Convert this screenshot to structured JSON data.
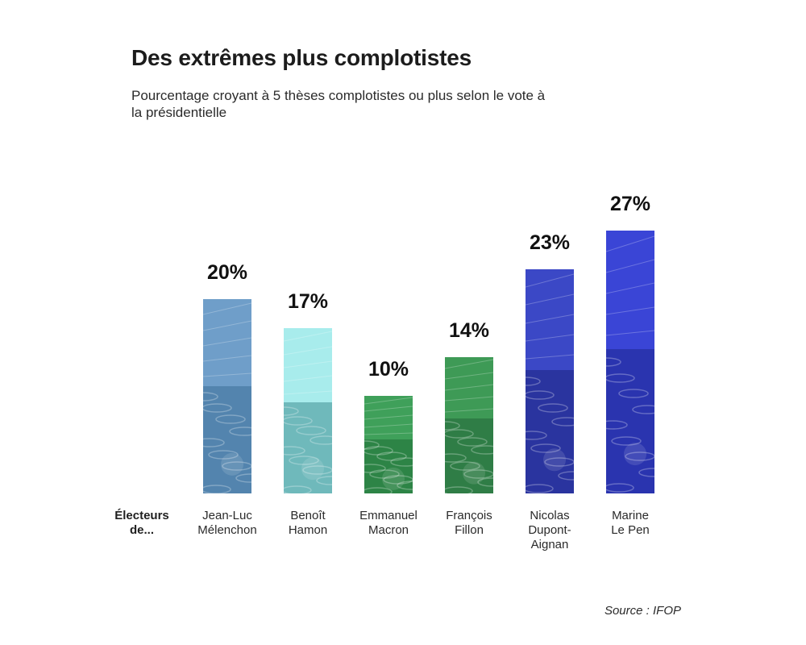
{
  "title": "Des extrêmes plus complotistes",
  "subtitle": "Pourcentage croyant à 5 thèses complotistes ou plus selon le vote à la présidentielle",
  "row_label": "Électeurs\nde...",
  "source": "Source : IFOP",
  "chart_data": {
    "type": "bar",
    "title": "Des extrêmes plus complotistes",
    "subtitle": "Pourcentage croyant à 5 thèses complotistes ou plus selon le vote à la présidentielle",
    "categories": [
      "Jean-Luc\nMélenchon",
      "Benoît\nHamon",
      "Emmanuel\nMacron",
      "François\nFillon",
      "Nicolas\nDupont-\nAignan",
      "Marine\nLe Pen"
    ],
    "values": [
      20,
      17,
      10,
      14,
      23,
      27
    ],
    "value_labels": [
      "20%",
      "17%",
      "10%",
      "14%",
      "23%",
      "27%"
    ],
    "unit": "%",
    "ylim": [
      0,
      27
    ],
    "grid": false,
    "legend": "none",
    "bar_colors": [
      "#6f9ec9",
      "#a8ecec",
      "#3fa05a",
      "#3e9a56",
      "#3b48c6",
      "#3a45d6"
    ],
    "bar_shade_colors": [
      "#3d6f97",
      "#3f8f93",
      "#1f6e36",
      "#22663a",
      "#1d2580",
      "#1e268f"
    ]
  }
}
